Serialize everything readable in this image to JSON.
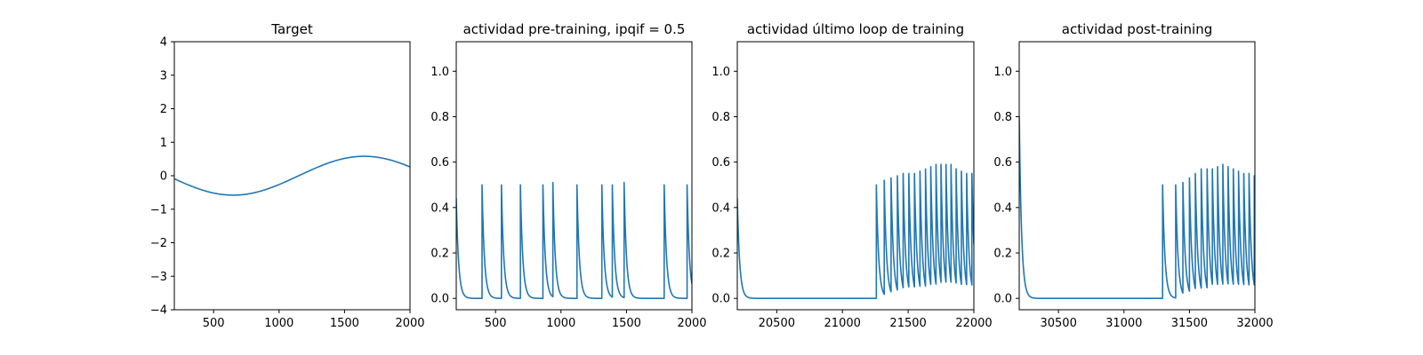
{
  "chart_data": [
    {
      "type": "line",
      "title": "Target",
      "xlabel": "",
      "ylabel": "",
      "xlim": [
        200,
        2000
      ],
      "ylim": [
        -4,
        4
      ],
      "xticks": [
        500,
        1000,
        1500,
        2000
      ],
      "xtick_labels": [
        "500",
        "1000",
        "1500",
        "2000"
      ],
      "yticks": [
        -4,
        -3,
        -2,
        -1,
        0,
        1,
        2,
        3,
        4
      ],
      "ytick_labels": [
        "−4",
        "−3",
        "−2",
        "−1",
        "0",
        "1",
        "2",
        "3",
        "4"
      ],
      "grid": false,
      "series": [
        {
          "color": "#1f77b4",
          "kind": "sine",
          "amplitude": 0.58,
          "period": 2000,
          "trough_x": 650
        }
      ]
    },
    {
      "type": "line",
      "title": "actividad pre-training, ipqif = 0.5",
      "xlabel": "",
      "ylabel": "",
      "xlim": [
        200,
        2000
      ],
      "ylim": [
        -0.05,
        1.13
      ],
      "xticks": [
        500,
        1000,
        1500,
        2000
      ],
      "xtick_labels": [
        "500",
        "1000",
        "1500",
        "2000"
      ],
      "yticks": [
        0.0,
        0.2,
        0.4,
        0.6,
        0.8,
        1.0
      ],
      "ytick_labels": [
        "0.0",
        "0.2",
        "0.4",
        "0.6",
        "0.8",
        "1.0"
      ],
      "grid": false,
      "series": [
        {
          "color": "#1f77b4",
          "kind": "spike_decay",
          "start_value": 0.44,
          "tau": 18,
          "spike_times": [
            397,
            545,
            690,
            862,
            938,
            1122,
            1312,
            1392,
            1482,
            1788,
            1963
          ],
          "spike_peaks": [
            0.5,
            0.5,
            0.5,
            0.5,
            0.51,
            0.5,
            0.5,
            0.5,
            0.51,
            0.5,
            0.5
          ]
        }
      ]
    },
    {
      "type": "line",
      "title": "actividad último loop de training",
      "xlabel": "",
      "ylabel": "",
      "xlim": [
        20200,
        22000
      ],
      "ylim": [
        -0.05,
        1.13
      ],
      "xticks": [
        20500,
        21000,
        21500,
        22000
      ],
      "xtick_labels": [
        "20500",
        "21000",
        "21500",
        "22000"
      ],
      "yticks": [
        0.0,
        0.2,
        0.4,
        0.6,
        0.8,
        1.0
      ],
      "ytick_labels": [
        "0.0",
        "0.2",
        "0.4",
        "0.6",
        "0.8",
        "1.0"
      ],
      "grid": false,
      "series": [
        {
          "color": "#1f77b4",
          "kind": "spike_decay",
          "start_value": 0.44,
          "tau": 18,
          "spike_times": [
            21258,
            21318,
            21370,
            21418,
            21462,
            21505,
            21548,
            21590,
            21632,
            21672,
            21712,
            21750,
            21788,
            21826,
            21865,
            21905,
            21945,
            21985
          ],
          "spike_peaks": [
            0.5,
            0.52,
            0.53,
            0.54,
            0.55,
            0.55,
            0.55,
            0.56,
            0.57,
            0.58,
            0.59,
            0.59,
            0.59,
            0.59,
            0.57,
            0.56,
            0.55,
            0.55
          ]
        }
      ]
    },
    {
      "type": "line",
      "title": "actividad post-training",
      "xlabel": "",
      "ylabel": "",
      "xlim": [
        30200,
        32000
      ],
      "ylim": [
        -0.05,
        1.13
      ],
      "xticks": [
        30500,
        31000,
        31500,
        32000
      ],
      "xtick_labels": [
        "30500",
        "31000",
        "31500",
        "32000"
      ],
      "yticks": [
        0.0,
        0.2,
        0.4,
        0.6,
        0.8,
        1.0
      ],
      "ytick_labels": [
        "0.0",
        "0.2",
        "0.4",
        "0.6",
        "0.8",
        "1.0"
      ],
      "grid": false,
      "series": [
        {
          "color": "#1f77b4",
          "kind": "spike_decay",
          "start_value": 0.8,
          "tau": 18,
          "spike_times": [
            31295,
            31395,
            31450,
            31500,
            31545,
            31590,
            31635,
            31675,
            31715,
            31755,
            31795,
            31835,
            31875,
            31915,
            31955,
            31995
          ],
          "spike_peaks": [
            0.5,
            0.5,
            0.51,
            0.53,
            0.55,
            0.57,
            0.57,
            0.57,
            0.58,
            0.59,
            0.58,
            0.57,
            0.56,
            0.55,
            0.55,
            0.54
          ]
        }
      ]
    }
  ]
}
